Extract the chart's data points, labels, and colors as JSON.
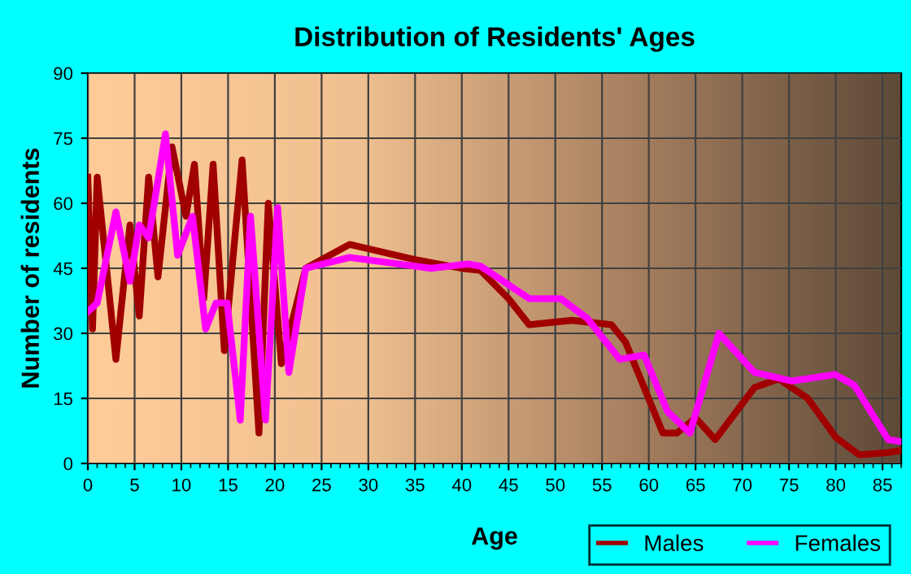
{
  "chart_data": {
    "type": "line",
    "title": "Distribution of Residents' Ages",
    "xlabel": "Age",
    "ylabel": "Number of residents",
    "xlim": [
      0,
      87
    ],
    "xticks": [
      0,
      5,
      10,
      15,
      20,
      25,
      30,
      35,
      40,
      45,
      50,
      55,
      60,
      65,
      70,
      75,
      80,
      85
    ],
    "ylim": [
      0,
      90
    ],
    "yticks": [
      0,
      15,
      30,
      45,
      60,
      75,
      90
    ],
    "grid": true,
    "legend": "bottom right",
    "line_style": "solid",
    "marker": "none",
    "series": [
      {
        "name": "Males",
        "color": "#a00000",
        "x": [
          0,
          0.5,
          1,
          3,
          4.5,
          5.5,
          6.5,
          7.5,
          9,
          10.5,
          11.4,
          12.4,
          13.4,
          14.6,
          16.5,
          18.3,
          19.3,
          20.7,
          23.3,
          28,
          30,
          35,
          40,
          42,
          45,
          47.2,
          51.8,
          56,
          57.5,
          61.5,
          63,
          65,
          67.1,
          71.3,
          73.9,
          77,
          80,
          82.5,
          85.6,
          87
        ],
        "values": [
          66,
          31,
          66,
          24,
          55,
          34,
          66,
          43,
          73,
          57,
          69,
          38,
          69,
          26,
          70,
          7,
          60,
          23,
          45,
          50.5,
          49.5,
          47,
          45,
          44.5,
          38,
          32,
          33,
          32,
          28,
          7,
          7,
          10.5,
          5.5,
          17.5,
          19.5,
          15,
          6,
          2,
          2.5,
          3
        ]
      },
      {
        "name": "Females",
        "color": "#ff00ff",
        "x": [
          0,
          1,
          3,
          4.5,
          5.5,
          6.5,
          8.3,
          9.6,
          11.2,
          12.6,
          13.7,
          14.9,
          16.3,
          17.4,
          19,
          20.3,
          21.5,
          23.3,
          28,
          36.7,
          40.7,
          42,
          47.2,
          50.6,
          53.4,
          56.9,
          59.5,
          62,
          64.4,
          67.5,
          71.3,
          75.3,
          79.9,
          82,
          85.6,
          87
        ],
        "values": [
          35,
          37,
          58,
          42,
          55,
          52,
          76,
          48,
          57,
          31,
          37,
          37,
          10,
          57,
          10,
          59,
          21,
          45,
          47.5,
          45,
          46,
          45.5,
          38,
          38,
          33.5,
          24,
          25,
          12,
          7,
          30,
          21,
          19,
          20.5,
          18,
          5.5,
          5
        ]
      }
    ]
  }
}
